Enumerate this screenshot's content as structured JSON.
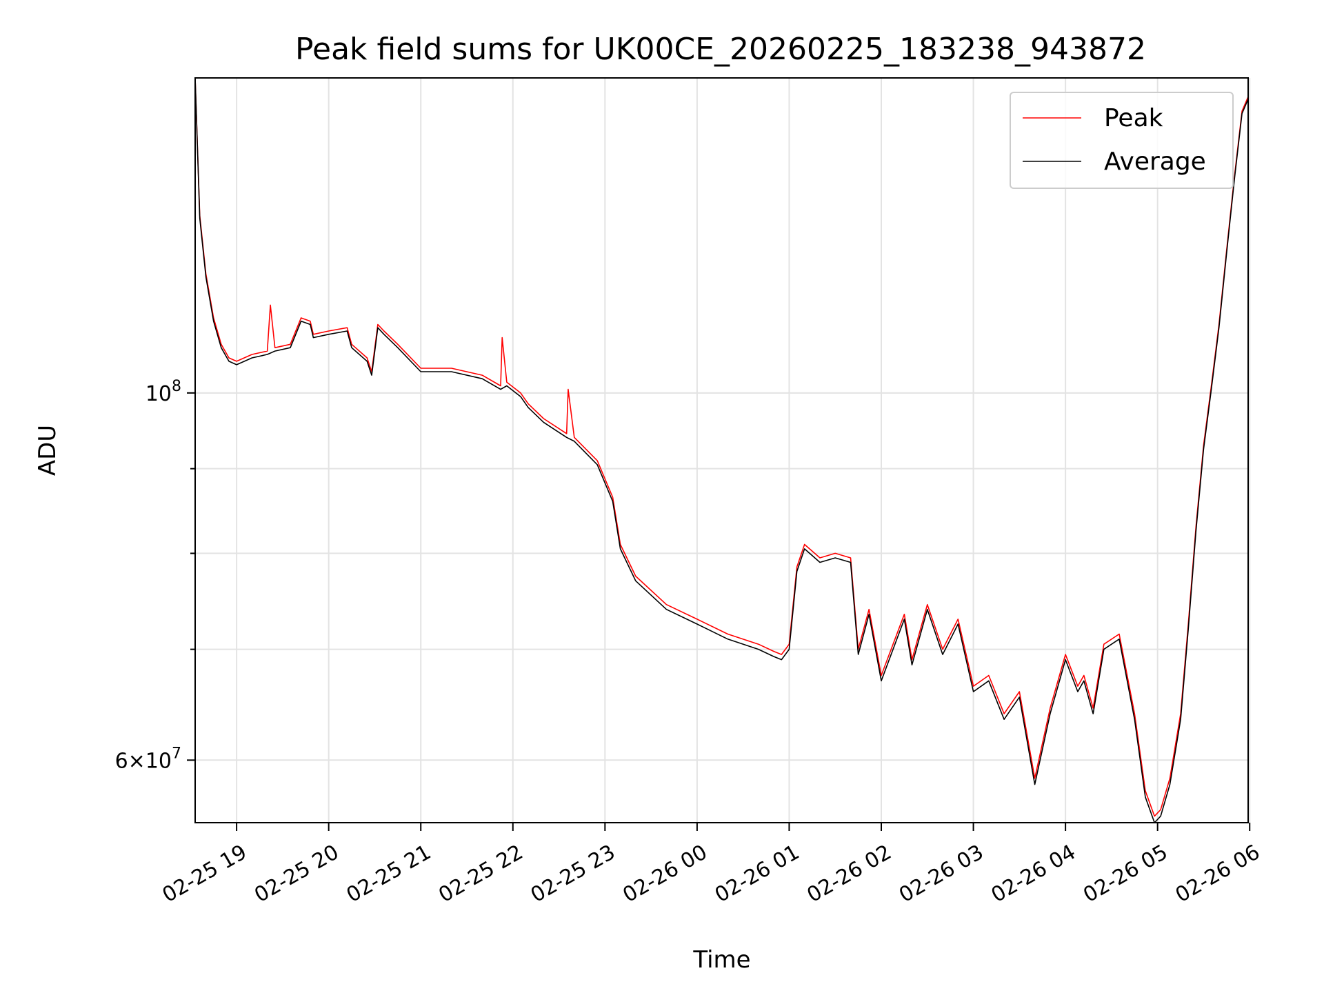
{
  "chart_data": {
    "type": "line",
    "title": "Peak field sums for UK00CE_20260225_183238_943872",
    "xlabel": "Time",
    "ylabel": "ADU",
    "yscale": "log",
    "grid": true,
    "legend_position": "top-right",
    "x_tick_labels": [
      "02-25 19",
      "02-25 20",
      "02-25 21",
      "02-25 22",
      "02-25 23",
      "02-26 00",
      "02-26 01",
      "02-26 02",
      "02-26 03",
      "02-26 04",
      "02-26 05",
      "02-26 06"
    ],
    "x_ticks": [
      "2026-02-25 19:00",
      "2026-02-25 20:00",
      "2026-02-25 21:00",
      "2026-02-25 22:00",
      "2026-02-25 23:00",
      "2026-02-26 00:00",
      "2026-02-26 01:00",
      "2026-02-26 02:00",
      "2026-02-26 03:00",
      "2026-02-26 04:00",
      "2026-02-26 05:00",
      "2026-02-26 06:00"
    ],
    "xlim": [
      "2026-02-25 18:33",
      "2026-02-26 05:59"
    ],
    "ylim": [
      55000000,
      155000000
    ],
    "y_major_ticks": [
      {
        "value": 100000000,
        "base": "10",
        "exp": "8"
      },
      {
        "value": 60000000,
        "mantissa": "6",
        "base": "10",
        "exp": "7"
      }
    ],
    "y_minor_ticks": [
      90000000,
      80000000,
      70000000
    ],
    "series": [
      {
        "name": "Peak",
        "color": "#ff0000",
        "x": [
          "2026-02-25 18:33",
          "2026-02-25 18:36",
          "2026-02-25 18:40",
          "2026-02-25 18:45",
          "2026-02-25 18:50",
          "2026-02-25 18:55",
          "2026-02-25 19:00",
          "2026-02-25 19:10",
          "2026-02-25 19:20",
          "2026-02-25 19:22",
          "2026-02-25 19:25",
          "2026-02-25 19:35",
          "2026-02-25 19:42",
          "2026-02-25 19:48",
          "2026-02-25 19:50",
          "2026-02-25 20:00",
          "2026-02-25 20:12",
          "2026-02-25 20:15",
          "2026-02-25 20:25",
          "2026-02-25 20:28",
          "2026-02-25 20:32",
          "2026-02-25 20:36",
          "2026-02-25 20:45",
          "2026-02-25 21:00",
          "2026-02-25 21:20",
          "2026-02-25 21:40",
          "2026-02-25 21:52",
          "2026-02-25 21:53",
          "2026-02-25 21:56",
          "2026-02-25 22:05",
          "2026-02-25 22:10",
          "2026-02-25 22:20",
          "2026-02-25 22:35",
          "2026-02-25 22:36",
          "2026-02-25 22:40",
          "2026-02-25 22:55",
          "2026-02-25 23:05",
          "2026-02-25 23:10",
          "2026-02-25 23:20",
          "2026-02-25 23:40",
          "2026-02-26 00:00",
          "2026-02-26 00:20",
          "2026-02-26 00:40",
          "2026-02-26 00:50",
          "2026-02-26 00:55",
          "2026-02-26 01:00",
          "2026-02-26 01:05",
          "2026-02-26 01:10",
          "2026-02-26 01:20",
          "2026-02-26 01:30",
          "2026-02-26 01:40",
          "2026-02-26 01:45",
          "2026-02-26 01:52",
          "2026-02-26 02:00",
          "2026-02-26 02:15",
          "2026-02-26 02:20",
          "2026-02-26 02:30",
          "2026-02-26 02:40",
          "2026-02-26 02:50",
          "2026-02-26 03:00",
          "2026-02-26 03:10",
          "2026-02-26 03:20",
          "2026-02-26 03:30",
          "2026-02-26 03:40",
          "2026-02-26 03:50",
          "2026-02-26 04:00",
          "2026-02-26 04:08",
          "2026-02-26 04:12",
          "2026-02-26 04:18",
          "2026-02-26 04:25",
          "2026-02-26 04:35",
          "2026-02-26 04:45",
          "2026-02-26 04:52",
          "2026-02-26 04:58",
          "2026-02-26 05:02",
          "2026-02-26 05:08",
          "2026-02-26 05:15",
          "2026-02-26 05:20",
          "2026-02-26 05:25",
          "2026-02-26 05:30",
          "2026-02-26 05:35",
          "2026-02-26 05:40",
          "2026-02-26 05:45",
          "2026-02-26 05:50",
          "2026-02-26 05:55",
          "2026-02-26 05:59"
        ],
        "y": [
          155000000,
          128000000,
          118000000,
          111000000,
          107000000,
          105000000,
          104500000,
          105500000,
          106000000,
          113000000,
          106500000,
          107000000,
          111000000,
          110500000,
          108500000,
          109000000,
          109500000,
          107000000,
          105000000,
          103000000,
          110000000,
          109000000,
          107000000,
          103500000,
          103500000,
          102500000,
          101000000,
          108000000,
          101500000,
          100000000,
          98500000,
          96500000,
          94500000,
          100500000,
          94000000,
          91000000,
          86500000,
          81000000,
          77500000,
          74500000,
          73000000,
          71500000,
          70500000,
          69800000,
          69500000,
          70500000,
          78500000,
          81000000,
          79500000,
          80000000,
          79500000,
          70000000,
          74000000,
          67500000,
          73500000,
          69000000,
          74500000,
          70000000,
          73000000,
          66500000,
          67500000,
          64000000,
          66000000,
          58500000,
          64500000,
          69500000,
          66500000,
          67500000,
          64500000,
          70500000,
          71500000,
          64000000,
          57500000,
          55500000,
          56000000,
          58500000,
          64000000,
          72500000,
          83000000,
          93000000,
          101000000,
          110000000,
          122000000,
          135000000,
          148000000,
          151000000
        ]
      },
      {
        "name": "Average",
        "color": "#000000",
        "x": [
          "2026-02-25 18:33",
          "2026-02-25 18:36",
          "2026-02-25 18:40",
          "2026-02-25 18:45",
          "2026-02-25 18:50",
          "2026-02-25 18:55",
          "2026-02-25 19:00",
          "2026-02-25 19:10",
          "2026-02-25 19:20",
          "2026-02-25 19:25",
          "2026-02-25 19:35",
          "2026-02-25 19:42",
          "2026-02-25 19:48",
          "2026-02-25 19:50",
          "2026-02-25 20:00",
          "2026-02-25 20:12",
          "2026-02-25 20:15",
          "2026-02-25 20:25",
          "2026-02-25 20:28",
          "2026-02-25 20:32",
          "2026-02-25 20:36",
          "2026-02-25 20:45",
          "2026-02-25 21:00",
          "2026-02-25 21:20",
          "2026-02-25 21:40",
          "2026-02-25 21:52",
          "2026-02-25 21:56",
          "2026-02-25 22:05",
          "2026-02-25 22:10",
          "2026-02-25 22:20",
          "2026-02-25 22:35",
          "2026-02-25 22:40",
          "2026-02-25 22:55",
          "2026-02-25 23:05",
          "2026-02-25 23:10",
          "2026-02-25 23:20",
          "2026-02-25 23:40",
          "2026-02-26 00:00",
          "2026-02-26 00:20",
          "2026-02-26 00:40",
          "2026-02-26 00:50",
          "2026-02-26 00:55",
          "2026-02-26 01:00",
          "2026-02-26 01:05",
          "2026-02-26 01:10",
          "2026-02-26 01:20",
          "2026-02-26 01:30",
          "2026-02-26 01:40",
          "2026-02-26 01:45",
          "2026-02-26 01:52",
          "2026-02-26 02:00",
          "2026-02-26 02:15",
          "2026-02-26 02:20",
          "2026-02-26 02:30",
          "2026-02-26 02:40",
          "2026-02-26 02:50",
          "2026-02-26 03:00",
          "2026-02-26 03:10",
          "2026-02-26 03:20",
          "2026-02-26 03:30",
          "2026-02-26 03:40",
          "2026-02-26 03:50",
          "2026-02-26 04:00",
          "2026-02-26 04:08",
          "2026-02-26 04:12",
          "2026-02-26 04:18",
          "2026-02-26 04:25",
          "2026-02-26 04:35",
          "2026-02-26 04:45",
          "2026-02-26 04:52",
          "2026-02-26 04:58",
          "2026-02-26 05:02",
          "2026-02-26 05:08",
          "2026-02-26 05:15",
          "2026-02-26 05:20",
          "2026-02-26 05:25",
          "2026-02-26 05:30",
          "2026-02-26 05:35",
          "2026-02-26 05:40",
          "2026-02-26 05:45",
          "2026-02-26 05:50",
          "2026-02-26 05:55",
          "2026-02-26 05:59"
        ],
        "y": [
          155000000,
          127500000,
          117500000,
          110500000,
          106500000,
          104500000,
          104000000,
          105000000,
          105500000,
          106000000,
          106500000,
          110500000,
          110000000,
          108000000,
          108500000,
          109000000,
          106500000,
          104500000,
          102500000,
          109500000,
          108500000,
          106500000,
          103000000,
          103000000,
          102000000,
          100500000,
          101000000,
          99500000,
          98000000,
          96000000,
          94000000,
          93500000,
          90500000,
          86000000,
          80500000,
          77000000,
          74000000,
          72500000,
          71000000,
          70000000,
          69300000,
          69000000,
          70000000,
          78000000,
          80500000,
          79000000,
          79500000,
          79000000,
          69500000,
          73500000,
          67000000,
          73000000,
          68500000,
          74000000,
          69500000,
          72500000,
          66000000,
          67000000,
          63500000,
          65500000,
          58000000,
          64000000,
          69000000,
          66000000,
          67000000,
          64000000,
          70000000,
          71000000,
          63500000,
          57000000,
          55000000,
          55500000,
          58000000,
          63500000,
          72000000,
          82500000,
          92500000,
          100500000,
          109500000,
          121500000,
          134500000,
          147500000,
          150500000
        ]
      }
    ]
  }
}
